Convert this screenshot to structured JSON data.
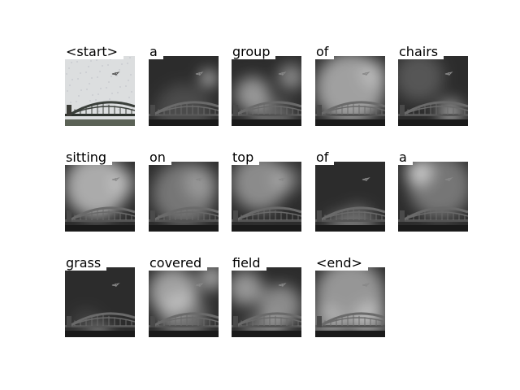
{
  "figure": {
    "caption_tokens": [
      {
        "word": "<start>",
        "glow": [
          [
            0.5,
            0.5,
            0.05,
            0.0
          ]
        ]
      },
      {
        "word": "a",
        "glow": [
          [
            0.86,
            0.32,
            0.1,
            0.9
          ],
          [
            0.5,
            0.8,
            0.4,
            0.15
          ]
        ]
      },
      {
        "word": "group",
        "glow": [
          [
            0.3,
            0.55,
            0.25,
            0.5
          ],
          [
            0.85,
            0.3,
            0.18,
            0.45
          ],
          [
            0.6,
            0.9,
            0.3,
            0.25
          ]
        ]
      },
      {
        "word": "of",
        "glow": [
          [
            0.5,
            0.45,
            0.5,
            0.55
          ],
          [
            0.85,
            0.25,
            0.2,
            0.3
          ]
        ]
      },
      {
        "word": "chairs",
        "glow": [
          [
            0.75,
            0.8,
            0.18,
            0.5
          ],
          [
            0.3,
            0.3,
            0.35,
            0.2
          ]
        ]
      },
      {
        "word": "sitting",
        "glow": [
          [
            0.45,
            0.35,
            0.45,
            0.6
          ],
          [
            0.85,
            0.3,
            0.2,
            0.3
          ]
        ]
      },
      {
        "word": "on",
        "glow": [
          [
            0.5,
            0.45,
            0.45,
            0.35
          ],
          [
            0.75,
            0.3,
            0.25,
            0.25
          ]
        ]
      },
      {
        "word": "top",
        "glow": [
          [
            0.4,
            0.3,
            0.4,
            0.45
          ],
          [
            0.8,
            0.25,
            0.2,
            0.3
          ]
        ]
      },
      {
        "word": "of",
        "glow": [
          [
            0.6,
            0.88,
            0.25,
            0.3
          ],
          [
            0.3,
            0.88,
            0.15,
            0.25
          ]
        ]
      },
      {
        "word": "a",
        "glow": [
          [
            0.3,
            0.15,
            0.2,
            0.6
          ],
          [
            0.6,
            0.35,
            0.45,
            0.35
          ]
        ]
      },
      {
        "word": "grass",
        "glow": [
          [
            0.5,
            0.95,
            0.15,
            0.35
          ],
          [
            0.3,
            0.8,
            0.2,
            0.1
          ]
        ]
      },
      {
        "word": "covered",
        "glow": [
          [
            0.35,
            0.35,
            0.35,
            0.55
          ],
          [
            0.9,
            0.15,
            0.18,
            0.55
          ],
          [
            0.5,
            0.7,
            0.35,
            0.3
          ]
        ]
      },
      {
        "word": "field",
        "glow": [
          [
            0.2,
            0.3,
            0.25,
            0.5
          ],
          [
            0.7,
            0.55,
            0.3,
            0.45
          ],
          [
            0.45,
            0.95,
            0.3,
            0.3
          ]
        ]
      },
      {
        "word": "<end>",
        "glow": [
          [
            0.5,
            0.4,
            0.5,
            0.5
          ],
          [
            0.15,
            0.8,
            0.25,
            0.35
          ],
          [
            0.8,
            0.75,
            0.25,
            0.4
          ]
        ]
      }
    ]
  }
}
